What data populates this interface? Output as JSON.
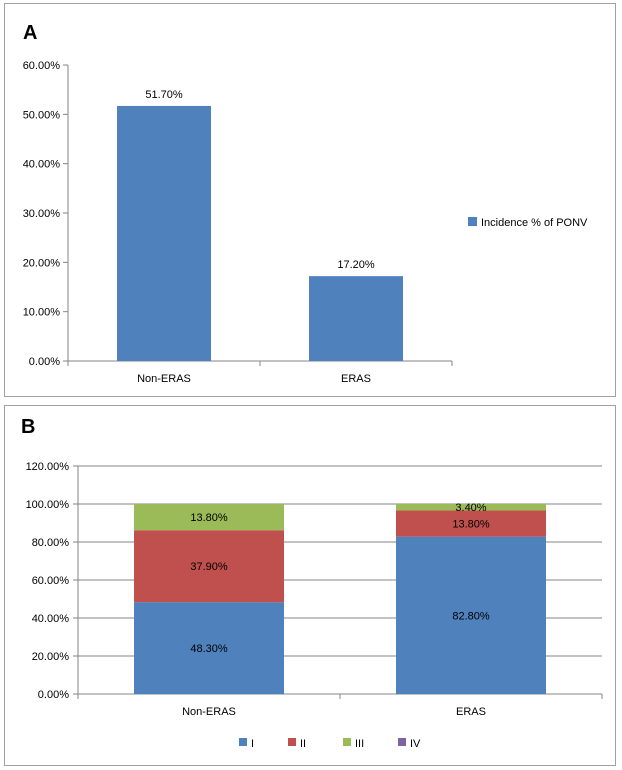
{
  "chart_data": [
    {
      "panel_label": "A",
      "type": "bar",
      "categories": [
        "Non-ERAS",
        "ERAS"
      ],
      "series": [
        {
          "name": "Incidence % of PONV",
          "values": [
            51.7,
            17.2
          ],
          "color": "#4f81bd"
        }
      ],
      "data_labels": [
        "51.70%",
        "17.20%"
      ],
      "ylim": [
        0,
        60
      ],
      "yticks": [
        0,
        10,
        20,
        30,
        40,
        50,
        60
      ],
      "ytick_labels": [
        "0.00%",
        "10.00%",
        "20.00%",
        "30.00%",
        "40.00%",
        "50.00%",
        "60.00%"
      ],
      "grid": false,
      "legend": "right"
    },
    {
      "panel_label": "B",
      "type": "bar",
      "stacked": true,
      "categories": [
        "Non-ERAS",
        "ERAS"
      ],
      "series": [
        {
          "name": "I",
          "values": [
            48.3,
            82.8
          ],
          "color": "#4f81bd",
          "labels": [
            "48.30%",
            "82.80%"
          ]
        },
        {
          "name": "II",
          "values": [
            37.9,
            13.8
          ],
          "color": "#c0504d",
          "labels": [
            "37.90%",
            "13.80%"
          ]
        },
        {
          "name": "III",
          "values": [
            13.8,
            3.4
          ],
          "color": "#9bbb59",
          "labels": [
            "13.80%",
            "3.40%"
          ]
        },
        {
          "name": "IV",
          "values": [
            0,
            0
          ],
          "color": "#8064a2",
          "labels": [
            "",
            ""
          ]
        }
      ],
      "ylim": [
        0,
        120
      ],
      "yticks": [
        0,
        20,
        40,
        60,
        80,
        100,
        120
      ],
      "ytick_labels": [
        "0.00%",
        "20.00%",
        "40.00%",
        "60.00%",
        "80.00%",
        "100.00%",
        "120.00%"
      ],
      "grid": true,
      "legend": "bottom"
    }
  ]
}
